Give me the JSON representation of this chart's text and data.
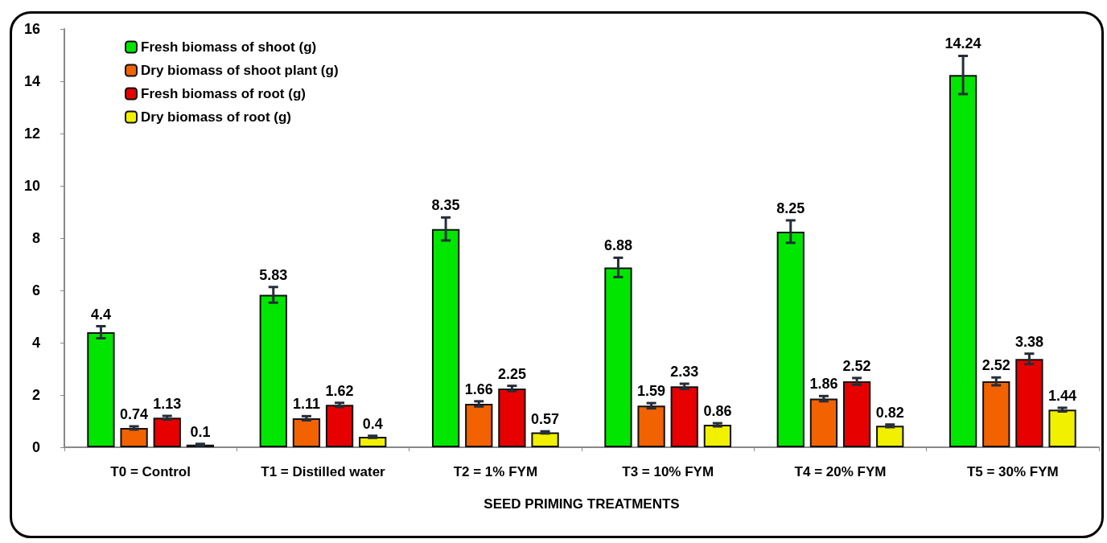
{
  "chart_data": {
    "type": "bar",
    "xlabel": "SEED PRIMING TREATMENTS",
    "categories": [
      "T0 = Control",
      "T1 = Distilled water",
      "T2 = 1% FYM",
      "T3 = 10% FYM",
      "T4 = 20% FYM",
      "T5 = 30% FYM"
    ],
    "series": [
      {
        "name": "Fresh biomass of shoot (g)",
        "color": "#00e600",
        "values": [
          4.4,
          5.83,
          8.35,
          6.88,
          8.25,
          14.24
        ],
        "errors": [
          0.23,
          0.3,
          0.44,
          0.37,
          0.43,
          0.73
        ]
      },
      {
        "name": "Dry biomass of shoot plant (g)",
        "color": "#f26200",
        "values": [
          0.74,
          1.11,
          1.66,
          1.59,
          1.86,
          2.52
        ],
        "errors": [
          0.06,
          0.08,
          0.1,
          0.1,
          0.1,
          0.15
        ]
      },
      {
        "name": "Fresh biomass of root (g)",
        "color": "#e60000",
        "values": [
          1.13,
          1.62,
          2.25,
          2.33,
          2.52,
          3.38
        ],
        "errors": [
          0.07,
          0.08,
          0.1,
          0.1,
          0.13,
          0.2
        ]
      },
      {
        "name": "Dry biomass of root (g)",
        "color": "#f0f000",
        "values": [
          0.1,
          0.4,
          0.57,
          0.86,
          0.82,
          1.44
        ],
        "errors": [
          0.03,
          0.04,
          0.04,
          0.06,
          0.05,
          0.07
        ]
      }
    ],
    "ylim": [
      0,
      16
    ],
    "yticks": [
      0,
      2,
      4,
      6,
      8,
      10,
      12,
      14,
      16
    ],
    "data_labels": true,
    "grid": false,
    "legend": "top left"
  }
}
